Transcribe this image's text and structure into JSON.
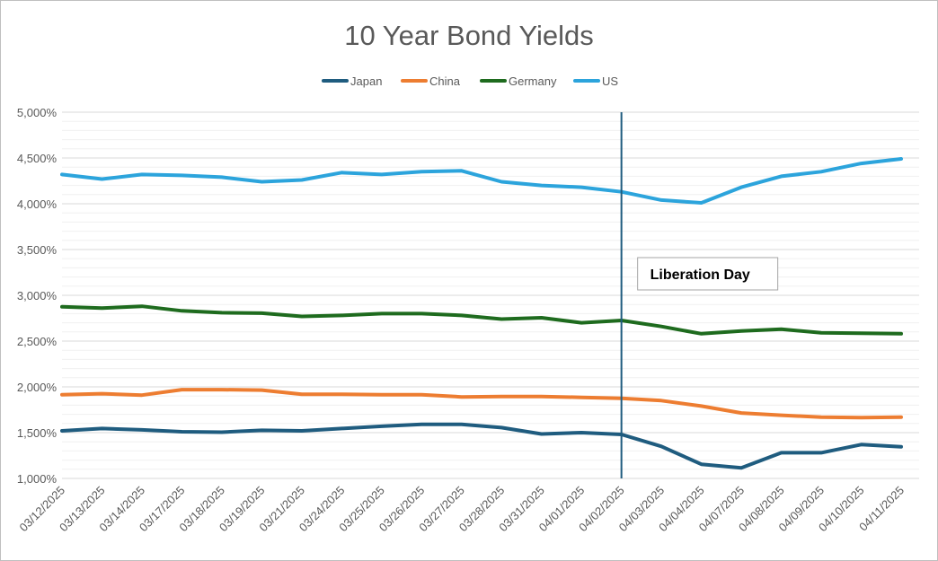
{
  "chart_data": {
    "type": "line",
    "title": "10 Year Bond Yields",
    "xlabel": "",
    "ylabel": "",
    "ylim": [
      1000,
      5000
    ],
    "yticks": [
      1000,
      1500,
      2000,
      2500,
      3000,
      3500,
      4000,
      4500,
      5000
    ],
    "ytick_labels": [
      "1,000%",
      "1,500%",
      "2,000%",
      "2,500%",
      "3,000%",
      "3,500%",
      "4,000%",
      "4,500%",
      "5,000%"
    ],
    "minor_gridline_step": 100,
    "grid": true,
    "legend_position": "top",
    "categories": [
      "03/12/2025",
      "03/13/2025",
      "03/14/2025",
      "03/17/2025",
      "03/18/2025",
      "03/19/2025",
      "03/21/2025",
      "03/24/2025",
      "03/25/2025",
      "03/26/2025",
      "03/27/2025",
      "03/28/2025",
      "03/31/2025",
      "04/01/2025",
      "04/02/2025",
      "04/03/2025",
      "04/04/2025",
      "04/07/2025",
      "04/08/2025",
      "04/09/2025",
      "04/10/2025",
      "04/11/2025"
    ],
    "series": [
      {
        "name": "Japan",
        "color": "#1f5c7f",
        "values": [
          1520,
          1545,
          1530,
          1510,
          1505,
          1525,
          1520,
          1545,
          1570,
          1590,
          1590,
          1555,
          1485,
          1500,
          1480,
          1350,
          1155,
          1115,
          1280,
          1280,
          1370,
          1345
        ]
      },
      {
        "name": "China",
        "color": "#ed7d31",
        "values": [
          1915,
          1925,
          1910,
          1970,
          1970,
          1965,
          1920,
          1920,
          1915,
          1915,
          1890,
          1895,
          1895,
          1885,
          1875,
          1850,
          1790,
          1715,
          1690,
          1670,
          1665,
          1670
        ]
      },
      {
        "name": "Germany",
        "color": "#1e6b1e",
        "values": [
          2875,
          2860,
          2880,
          2830,
          2810,
          2805,
          2770,
          2780,
          2800,
          2800,
          2780,
          2740,
          2755,
          2700,
          2725,
          2660,
          2580,
          2610,
          2630,
          2590,
          2585,
          2580
        ]
      },
      {
        "name": "US",
        "color": "#2ca4dc",
        "values": [
          4320,
          4270,
          4320,
          4310,
          4290,
          4240,
          4260,
          4340,
          4320,
          4350,
          4360,
          4240,
          4200,
          4180,
          4130,
          4040,
          4010,
          4180,
          4300,
          4350,
          4440,
          4490
        ]
      }
    ],
    "annotations": [
      {
        "type": "vertical-line",
        "x": "04/02/2025",
        "color": "#1f5c7f",
        "label": "Liberation Day"
      }
    ]
  }
}
